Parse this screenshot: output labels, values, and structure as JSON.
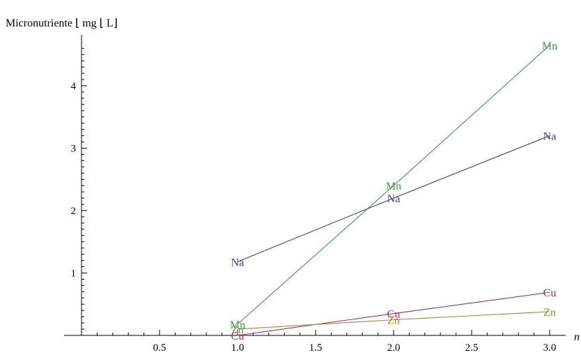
{
  "chart_data": {
    "type": "line",
    "ylabel": "Micronutriente ⌊ mg ⌊ L⌋",
    "xlabel": "n",
    "xlim": [
      0,
      3.0
    ],
    "ylim": [
      0,
      4.8
    ],
    "x_ticks": [
      0.5,
      1.0,
      1.5,
      2.0,
      2.5,
      3.0
    ],
    "x_tick_labels": [
      "0.5",
      "1.0",
      "1.5",
      "2.0",
      "2.5",
      "3.0"
    ],
    "y_ticks": [
      1,
      2,
      3,
      4
    ],
    "y_tick_labels": [
      "1",
      "2",
      "3",
      "4"
    ],
    "grid": false,
    "legend": "none",
    "series": [
      {
        "name": "Mn",
        "color": "#3a9b52",
        "x": [
          1.0,
          2.0,
          3.0
        ],
        "y": [
          0.18,
          2.4,
          4.65
        ]
      },
      {
        "name": "Na",
        "color": "#3a3a99",
        "x": [
          1.0,
          2.0,
          3.0
        ],
        "y": [
          1.18,
          2.2,
          3.2
        ]
      },
      {
        "name": "Cu",
        "color": "#a3306b",
        "x": [
          1.0,
          2.0,
          3.0
        ],
        "y": [
          0.0,
          0.35,
          0.69
        ]
      },
      {
        "name": "Zn",
        "color": "#9a8a2e",
        "x": [
          1.0,
          2.0,
          3.0
        ],
        "y": [
          0.1,
          0.25,
          0.38
        ]
      }
    ]
  }
}
